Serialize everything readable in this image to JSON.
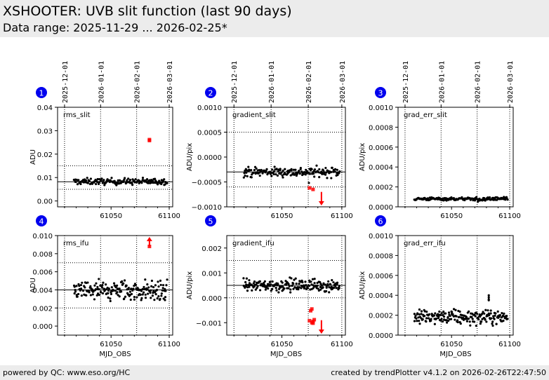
{
  "header": {
    "title": "XSHOOTER: UVB slit function (last 90 days)",
    "subtitle": "Data range: 2025-11-29 ... 2026-02-25*"
  },
  "footer": {
    "left": "powered by QC: www.eso.org/HC",
    "right": "created by trendPlotter v4.1.2 on 2026-02-26T22:47:50"
  },
  "colors": {
    "normal_point": "#000000",
    "outlier_point": "#ff0000",
    "badge": "#0000ee",
    "header_bg": "#ececec"
  },
  "chart_data": [
    {
      "type": "scatter",
      "badge": "1",
      "title": "rms_slit",
      "ylabel": "ADU",
      "xlabel": "",
      "xlim": [
        61004,
        61103
      ],
      "ylim": [
        -0.0025,
        0.04
      ],
      "yticks": [
        0.0,
        0.01,
        0.02,
        0.03,
        0.04
      ],
      "ytick_labels": [
        "0.00",
        "0.01",
        "0.02",
        "0.03",
        "0.04"
      ],
      "xticks": [
        61050,
        61100
      ],
      "xtick_labels": [
        "61050",
        "61100"
      ],
      "show_xtick_labels": false,
      "date_ticks": [
        61010,
        61041,
        61072,
        61100
      ],
      "date_labels": [
        "2025-12-01",
        "2026-01-01",
        "2026-02-01",
        "2026-03-01"
      ],
      "reference": 0.0082,
      "limits": [
        0.005,
        0.015
      ],
      "normal": {
        "x_start": 61018,
        "x_end": 61098,
        "center": 0.0083,
        "spread": 0.0007,
        "n": 160
      },
      "outliers": [
        {
          "x": 61083,
          "y": 0.0258
        },
        {
          "x": 61083,
          "y": 0.0262
        }
      ]
    },
    {
      "type": "scatter",
      "badge": "2",
      "title": "gradient_slit",
      "ylabel": "ADU/pix",
      "xlabel": "",
      "xlim": [
        61004,
        61103
      ],
      "ylim": [
        -0.001,
        0.001
      ],
      "yticks": [
        -0.001,
        -0.0005,
        0.0,
        0.0005,
        0.001
      ],
      "ytick_labels": [
        "−0.0010",
        "−0.0005",
        "0.0000",
        "0.0005",
        "0.0010"
      ],
      "xticks": [
        61050,
        61100
      ],
      "xtick_labels": [
        "61050",
        "61100"
      ],
      "show_xtick_labels": false,
      "date_ticks": [
        61010,
        61041,
        61072,
        61100
      ],
      "date_labels": [
        "2025-12-01",
        "2026-01-01",
        "2026-02-01",
        "2026-03-01"
      ],
      "reference": -0.0003,
      "limits": [
        -0.0006,
        0.0005
      ],
      "normal": {
        "x_start": 61018,
        "x_end": 61098,
        "center": -0.0003,
        "spread": 5e-05,
        "n": 170
      },
      "outliers": [
        {
          "x": 61073,
          "y": -0.00062
        },
        {
          "x": 61076,
          "y": -0.00065
        }
      ],
      "arrows": [
        {
          "x": 61083,
          "y": -0.0007,
          "direction": "down"
        }
      ]
    },
    {
      "type": "scatter",
      "badge": "3",
      "title": "grad_err_slit",
      "ylabel": "ADU/pix",
      "xlabel": "",
      "xlim": [
        61004,
        61103
      ],
      "ylim": [
        0.0,
        0.001
      ],
      "yticks": [
        0.0,
        0.0002,
        0.0004,
        0.0006,
        0.0008,
        0.001
      ],
      "ytick_labels": [
        "0.0000",
        "0.0002",
        "0.0004",
        "0.0006",
        "0.0008",
        "0.0010"
      ],
      "xticks": [
        61050,
        61100
      ],
      "xtick_labels": [
        "61050",
        "61100"
      ],
      "show_xtick_labels": false,
      "date_ticks": [
        61010,
        61041,
        61072,
        61100
      ],
      "date_labels": [
        "2025-12-01",
        "2026-01-01",
        "2026-02-01",
        "2026-03-01"
      ],
      "normal": {
        "x_start": 61018,
        "x_end": 61098,
        "center": 8e-05,
        "spread": 8e-06,
        "n": 160
      },
      "outliers": []
    },
    {
      "type": "scatter",
      "badge": "4",
      "title": "rms_ifu",
      "ylabel": "ADU",
      "xlabel": "MJD_OBS",
      "xlim": [
        61004,
        61103
      ],
      "ylim": [
        -0.001,
        0.01
      ],
      "yticks": [
        0.0,
        0.002,
        0.004,
        0.006,
        0.008,
        0.01
      ],
      "ytick_labels": [
        "0.000",
        "0.002",
        "0.004",
        "0.006",
        "0.008",
        "0.010"
      ],
      "xticks": [
        61050,
        61100
      ],
      "xtick_labels": [
        "61050",
        "61100"
      ],
      "show_xtick_labels": true,
      "date_ticks": [
        61010,
        61041,
        61072,
        61100
      ],
      "date_labels": [],
      "reference": 0.004,
      "limits": [
        0.002,
        0.007
      ],
      "normal": {
        "x_start": 61018,
        "x_end": 61098,
        "center": 0.0039,
        "spread": 0.0006,
        "n": 200
      },
      "outliers": [
        {
          "x": 61083,
          "y": 0.0088
        }
      ],
      "arrows": [
        {
          "x": 61083,
          "y": 0.0092,
          "direction": "up"
        }
      ]
    },
    {
      "type": "scatter",
      "badge": "5",
      "title": "gradient_ifu",
      "ylabel": "ADU/pix",
      "xlabel": "MJD_OBS",
      "xlim": [
        61004,
        61103
      ],
      "ylim": [
        -0.0015,
        0.0025
      ],
      "yticks": [
        -0.001,
        0.0,
        0.001,
        0.002
      ],
      "ytick_labels": [
        "−0.001",
        "0.000",
        "0.001",
        "0.002"
      ],
      "xticks": [
        61050,
        61100
      ],
      "xtick_labels": [
        "61050",
        "61100"
      ],
      "show_xtick_labels": true,
      "date_ticks": [
        61010,
        61041,
        61072,
        61100
      ],
      "date_labels": [],
      "reference": 0.0005,
      "limits": [
        0.0,
        0.0015
      ],
      "normal": {
        "x_start": 61018,
        "x_end": 61098,
        "center": 0.0005,
        "spread": 0.00013,
        "n": 200
      },
      "outliers": [
        {
          "x": 61075,
          "y": -0.00045
        },
        {
          "x": 61074,
          "y": -0.00052
        },
        {
          "x": 61073,
          "y": -0.00092
        },
        {
          "x": 61075,
          "y": -0.001
        },
        {
          "x": 61076,
          "y": -0.00095
        },
        {
          "x": 61077,
          "y": -0.00088
        },
        {
          "x": 61076,
          "y": -0.00102
        }
      ],
      "arrows": [
        {
          "x": 61083,
          "y": -0.0009,
          "direction": "down"
        }
      ]
    },
    {
      "type": "scatter",
      "badge": "6",
      "title": "grad_err_ifu",
      "ylabel": "ADU/pix",
      "xlabel": "MJD_OBS",
      "xlim": [
        61004,
        61103
      ],
      "ylim": [
        0.0,
        0.001
      ],
      "yticks": [
        0.0,
        0.0002,
        0.0004,
        0.0006,
        0.0008,
        0.001
      ],
      "ytick_labels": [
        "0.0000",
        "0.0002",
        "0.0004",
        "0.0006",
        "0.0008",
        "0.0010"
      ],
      "xticks": [
        61050,
        61100
      ],
      "xtick_labels": [
        "61050",
        "61100"
      ],
      "show_xtick_labels": true,
      "date_ticks": [
        61010,
        61041,
        61072,
        61100
      ],
      "date_labels": [],
      "normal": {
        "x_start": 61018,
        "x_end": 61098,
        "center": 0.00018,
        "spread": 3.5e-05,
        "n": 200
      },
      "extra_normal": [
        {
          "x": 61082,
          "y": 0.0004
        },
        {
          "x": 61082,
          "y": 0.00038
        },
        {
          "x": 61082,
          "y": 0.00036
        },
        {
          "x": 61082,
          "y": 0.00035
        }
      ],
      "outliers": []
    }
  ]
}
